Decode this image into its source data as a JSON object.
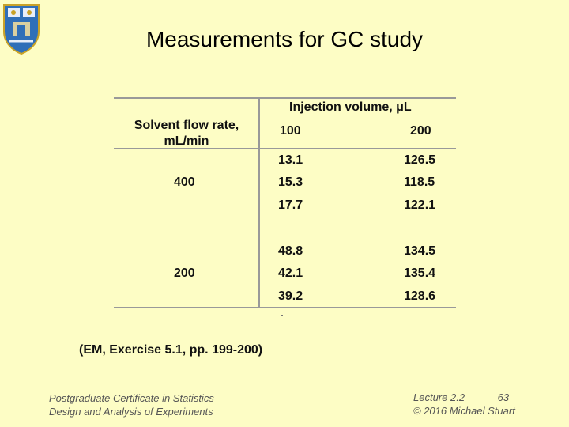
{
  "slide": {
    "title": "Measurements for GC study",
    "reference": "(EM, Exercise 5.1, pp. 199-200)"
  },
  "table": {
    "row_header": [
      "Solvent flow rate,",
      "mL/min"
    ],
    "col_header": "Injection volume, μL",
    "col_levels": [
      "100",
      "200"
    ],
    "groups": [
      {
        "flow_rate": "400",
        "rows": [
          [
            "13.1",
            "126.5"
          ],
          [
            "15.3",
            "118.5"
          ],
          [
            "17.7",
            "122.1"
          ]
        ]
      },
      {
        "flow_rate": "200",
        "rows": [
          [
            "48.8",
            "134.5"
          ],
          [
            "42.1",
            "135.4"
          ],
          [
            "39.2",
            "128.6"
          ]
        ]
      }
    ]
  },
  "footer": {
    "course_line1": "Postgraduate Certificate in Statistics",
    "course_line2": "Design and Analysis of Experiments",
    "lecture": "Lecture 2.2",
    "page_number": "63",
    "copyright": "© 2016 Michael Stuart"
  },
  "colors": {
    "background": "#fdfdc5",
    "rule": "#999999"
  }
}
